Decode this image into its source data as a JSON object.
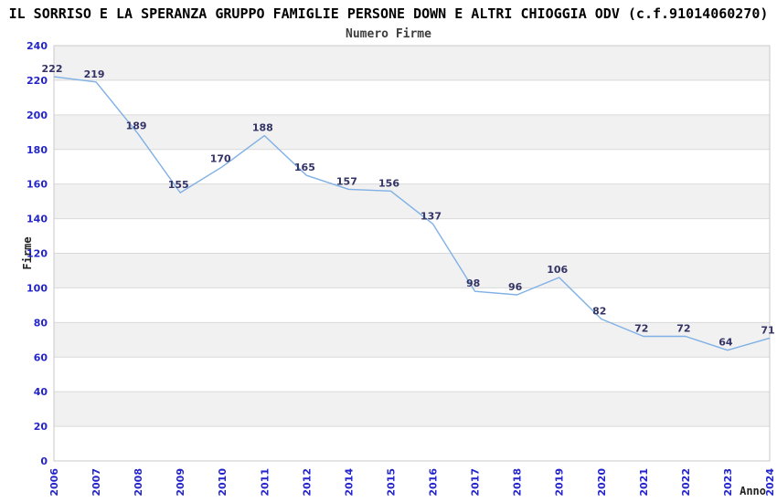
{
  "header": {
    "title": "IL SORRISO E LA SPERANZA GRUPPO FAMIGLIE PERSONE DOWN E ALTRI CHIOGGIA ODV (c.f.91014060270)",
    "subtitle": "Numero Firme"
  },
  "chart_data": {
    "type": "line",
    "title": "Numero Firme",
    "categories": [
      "2006",
      "2007",
      "2008",
      "2009",
      "2010",
      "2011",
      "2012",
      "2014",
      "2015",
      "2016",
      "2017",
      "2018",
      "2019",
      "2020",
      "2021",
      "2022",
      "2023",
      "2024"
    ],
    "values": [
      222,
      219,
      189,
      155,
      170,
      188,
      165,
      157,
      156,
      137,
      98,
      96,
      106,
      82,
      72,
      72,
      64,
      71
    ],
    "xlabel": "Anno",
    "ylabel": "Firme",
    "ylim": [
      0,
      240
    ],
    "ytick_step": 20,
    "y_ticks": [
      0,
      20,
      40,
      60,
      80,
      100,
      120,
      140,
      160,
      180,
      200,
      220,
      240
    ],
    "grid": "horizontal",
    "background_bands": true,
    "legend": "none",
    "markers": "none",
    "colors": {
      "line": "#7fb0e6",
      "value_label": "#333366",
      "tick_label": "#2424cc",
      "band_gray": "#f1f1f1",
      "band_white": "#ffffff",
      "grid_line": "#d9d9d9",
      "plot_border": "#c9c9c9",
      "title": "#000000",
      "subtitle": "#3d3d3d",
      "axis_title": "#222222",
      "background": "#ffffff"
    }
  }
}
